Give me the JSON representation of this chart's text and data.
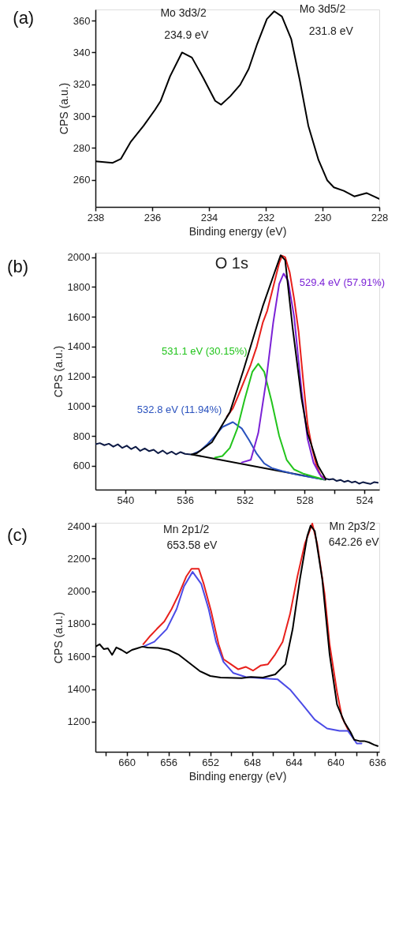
{
  "chart_data": [
    {
      "type": "line",
      "title": "(a)",
      "xlabel": "Binding energy (eV)",
      "ylabel": "CPS (a.u.)",
      "xlim": [
        238,
        228
      ],
      "ylim": [
        243,
        367
      ],
      "xticks": [
        238,
        236,
        234,
        232,
        230,
        228
      ],
      "yticks": [
        260,
        280,
        300,
        320,
        340,
        360
      ],
      "grid": false,
      "series": [
        {
          "color": "#000000",
          "x": [
            238,
            237.39,
            237.1,
            236.75,
            236.3,
            235.9,
            235.7,
            235.37,
            234.95,
            234.6,
            234.2,
            233.78,
            233.57,
            233.25,
            232.9,
            232.6,
            232.3,
            231.96,
            231.7,
            231.43,
            231.1,
            230.8,
            230.5,
            230.14,
            229.83,
            229.6,
            229.25,
            228.88,
            228.45,
            228.0
          ],
          "values": [
            271.7,
            270.7,
            273.2,
            284,
            294,
            304,
            309.6,
            325,
            340,
            336.8,
            324,
            309.6,
            307.2,
            312.5,
            319.7,
            329.7,
            345.4,
            361,
            365.9,
            362.6,
            348.3,
            322.5,
            294,
            272.4,
            259.6,
            255.3,
            253.1,
            249.6,
            251.7,
            248
          ]
        }
      ],
      "annotations": [
        "Mo 3d3/2",
        "234.9 eV",
        "Mo 3d5/2",
        "231.8 eV"
      ]
    },
    {
      "type": "line",
      "title": "(b)",
      "ylabel": "CPS (a.u.)",
      "xlim": [
        542,
        523
      ],
      "ylim": [
        440,
        2030
      ],
      "xticks": [
        540,
        {
          "value": 538,
          "label": null
        },
        536,
        {
          "value": 534,
          "label": null
        },
        532,
        {
          "value": 530,
          "label": null
        },
        528,
        {
          "value": 526,
          "label": null
        },
        524
      ],
      "yticks": [
        600,
        800,
        1000,
        1200,
        1400,
        1600,
        1800,
        2000
      ],
      "grid": false,
      "series": [
        {
          "color": "#0d1a45",
          "x": [
            542.0,
            541.7,
            541.4,
            541.1,
            540.8,
            540.5,
            540.2,
            539.9,
            539.6,
            539.3,
            539.0,
            538.7,
            538.4,
            538.1,
            537.8,
            537.5,
            537.2,
            536.9,
            536.6,
            536.3,
            536.0,
            535.6
          ],
          "values": [
            745,
            752,
            738,
            748,
            728,
            744,
            720,
            735,
            712,
            728,
            700,
            716,
            698,
            708,
            684,
            702,
            680,
            695,
            676,
            692,
            680,
            676
          ]
        },
        {
          "color": "#0d1a45",
          "x": [
            526.6,
            526.35,
            526.1,
            525.85,
            525.6,
            525.35,
            525.1,
            524.85,
            524.6,
            524.35,
            524.1,
            523.85,
            523.6,
            523.35,
            523.1
          ],
          "values": [
            514,
            508,
            512,
            498,
            505,
            492,
            500,
            488,
            494,
            480,
            490,
            484,
            478,
            490,
            486
          ]
        },
        {
          "color": "#e8201c",
          "x": [
            533.2,
            532.8,
            532.4,
            532.0,
            531.6,
            531.2,
            530.8,
            530.5,
            530.2,
            529.9,
            529.7,
            529.5,
            529.3,
            529.0,
            528.7,
            528.4,
            528.1,
            527.8,
            527.5,
            527.2,
            526.9,
            526.6
          ],
          "values": [
            930,
            985,
            1080,
            1180,
            1280,
            1400,
            1560,
            1640,
            1760,
            1880,
            1960,
            2010,
            2000,
            1900,
            1720,
            1500,
            1180,
            880,
            720,
            600,
            530,
            515
          ]
        },
        {
          "color": "#000000",
          "x": [
            535.55,
            526.6
          ],
          "values": [
            676,
            506
          ]
        },
        {
          "name": "532.8 eV (11.94%)",
          "color": "#2a52be",
          "x": [
            535.5,
            535.0,
            534.5,
            534.0,
            533.5,
            532.8,
            532.2,
            531.7,
            531.2,
            530.7,
            530.2,
            529.5,
            528.5,
            527.5,
            526.7
          ],
          "values": [
            678,
            700,
            745,
            800,
            860,
            893,
            850,
            770,
            680,
            615,
            585,
            565,
            540,
            522,
            508
          ]
        },
        {
          "name": "531.1 eV (30.15%)",
          "color": "#22c41c",
          "x": [
            534.0,
            533.5,
            533.0,
            532.5,
            532.0,
            531.5,
            531.1,
            530.7,
            530.2,
            529.7,
            529.2,
            528.7,
            528.1,
            527.5,
            526.7
          ],
          "values": [
            655,
            665,
            720,
            850,
            1050,
            1230,
            1285,
            1230,
            1030,
            800,
            640,
            575,
            548,
            530,
            508
          ]
        },
        {
          "name": "529.4 eV (57.91%)",
          "color": "#7b22d6",
          "x": [
            532.2,
            531.6,
            531.1,
            530.6,
            530.1,
            529.7,
            529.4,
            529.1,
            528.7,
            528.2,
            527.8,
            527.4,
            527.0,
            526.7
          ],
          "values": [
            622,
            640,
            820,
            1150,
            1560,
            1820,
            1890,
            1840,
            1600,
            1100,
            780,
            620,
            545,
            510
          ]
        },
        {
          "color": "#000000",
          "x": [
            535.55,
            535.2,
            534.2,
            533.0,
            532.1,
            530.8,
            530.0,
            529.6,
            529.3,
            528.8,
            528.2,
            527.8,
            527.6,
            527.1,
            526.6
          ],
          "values": [
            676,
            685,
            758,
            960,
            1239,
            1670,
            1900,
            2013,
            1980,
            1526,
            1050,
            817,
            758,
            600,
            514
          ]
        }
      ],
      "annotations": [
        "O 1s"
      ]
    },
    {
      "type": "line",
      "title": "(c)",
      "xlabel": "Binding energy (eV)",
      "ylabel": "CPS (a.u.)",
      "xlim": [
        663,
        635.8
      ],
      "ylim": [
        1015,
        2420
      ],
      "xticks": [
        {
          "value": 662,
          "label": null
        },
        660,
        {
          "value": 658,
          "label": null
        },
        656,
        {
          "value": 654,
          "label": null
        },
        652,
        {
          "value": 650,
          "label": null
        },
        648,
        {
          "value": 646,
          "label": null
        },
        644,
        {
          "value": 642,
          "label": null
        },
        640,
        {
          "value": 638,
          "label": null
        },
        636
      ],
      "yticks": [
        1200,
        1400,
        1600,
        1800,
        2000,
        2200,
        2400
      ],
      "grid": false,
      "series": [
        {
          "color": "#e8201c",
          "x": [
            658.42,
            657.82,
            657.12,
            656.4,
            655.7,
            654.99,
            654.28,
            653.8,
            653.1,
            652.62,
            651.91,
            651.2,
            650.73,
            650.02,
            649.31,
            648.6,
            647.9,
            647.18,
            646.47,
            645.77,
            645.06,
            644.35,
            643.64,
            642.93,
            642.22,
            641.75,
            641.04,
            640.56,
            639.85,
            639.38,
            638.8
          ],
          "values": [
            1675,
            1721,
            1768,
            1814,
            1891,
            1984,
            2092,
            2138,
            2138,
            2045,
            1876,
            1675,
            1583,
            1552,
            1521,
            1536,
            1513,
            1544,
            1552,
            1613,
            1690,
            1860,
            2092,
            2292,
            2415,
            2292,
            1984,
            1675,
            1382,
            1228,
            1151
          ]
        },
        {
          "color": "#4b4be6",
          "x": [
            658.42,
            657.35,
            656.17,
            655.22,
            654.51,
            653.69,
            652.86,
            652.15,
            651.44,
            650.73,
            649.78,
            648.6,
            647.18,
            645.53,
            644.35,
            643.16,
            641.98,
            640.8,
            639.6,
            638.8,
            638.2,
            637.96,
            637.5
          ],
          "values": [
            1660,
            1690,
            1768,
            1891,
            2030,
            2119,
            2045,
            1891,
            1690,
            1567,
            1498,
            1474,
            1467,
            1459,
            1397,
            1305,
            1212,
            1158,
            1143,
            1143,
            1089,
            1066,
            1066
          ]
        },
        {
          "color": "#000000",
          "x": [
            663.0,
            662.6,
            662.2,
            661.8,
            661.4,
            661.0,
            660.5,
            660.0,
            659.5,
            659.0,
            658.5,
            658.0,
            657.0,
            656.0,
            655.0,
            654.0,
            653.0,
            652.0,
            651.0,
            649.0,
            648.1,
            646.95,
            645.77,
            644.8,
            644.1,
            643.4,
            642.7,
            642.38,
            641.98,
            641.27,
            640.56,
            639.85,
            639.14,
            638.55,
            638.2,
            637.7,
            637.25,
            636.8,
            636.3,
            635.95
          ],
          "values": [
            1660,
            1675,
            1645,
            1650,
            1610,
            1655,
            1640,
            1620,
            1640,
            1650,
            1660,
            1655,
            1652,
            1640,
            1610,
            1560,
            1510,
            1480,
            1470,
            1467,
            1474,
            1470,
            1490,
            1552,
            1768,
            2076,
            2338,
            2403,
            2369,
            2076,
            1613,
            1305,
            1197,
            1135,
            1089,
            1081,
            1081,
            1073,
            1058,
            1050
          ]
        }
      ],
      "annotations": [
        "Mn 2p1/2",
        "653.58 eV",
        "Mn 2p3/2",
        "642.26 eV"
      ]
    }
  ]
}
